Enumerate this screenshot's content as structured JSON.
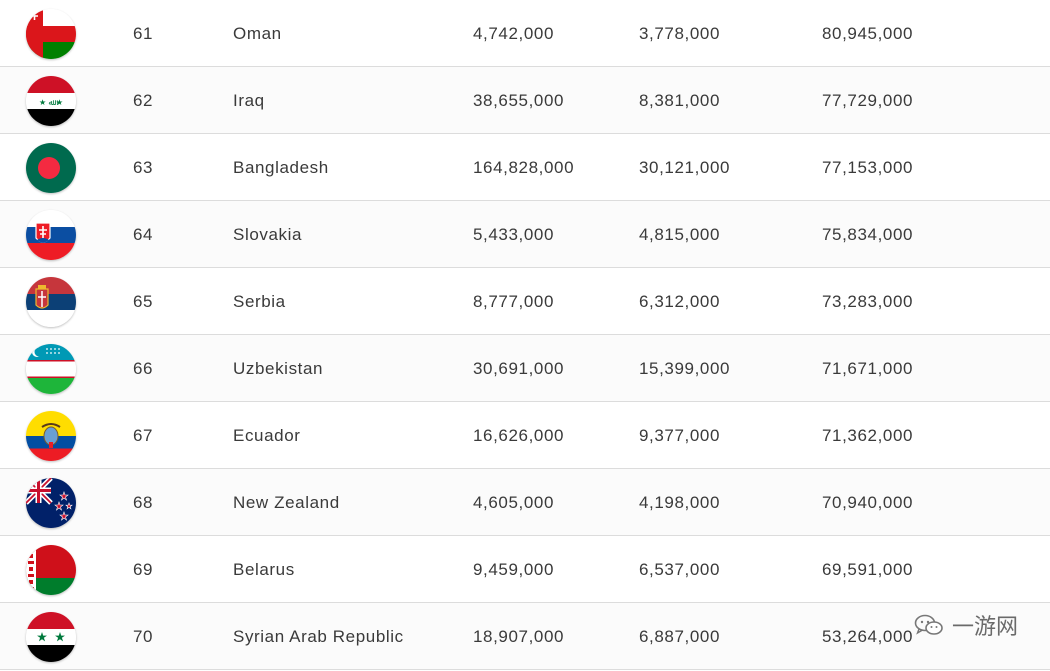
{
  "rows": [
    {
      "rank": "61",
      "country": "Oman",
      "value1": "4,742,000",
      "value2": "3,778,000",
      "value3": "80,945,000",
      "flag_icon": "oman-flag-icon"
    },
    {
      "rank": "62",
      "country": "Iraq",
      "value1": "38,655,000",
      "value2": "8,381,000",
      "value3": "77,729,000",
      "flag_icon": "iraq-flag-icon"
    },
    {
      "rank": "63",
      "country": "Bangladesh",
      "value1": "164,828,000",
      "value2": "30,121,000",
      "value3": "77,153,000",
      "flag_icon": "bangladesh-flag-icon"
    },
    {
      "rank": "64",
      "country": "Slovakia",
      "value1": "5,433,000",
      "value2": "4,815,000",
      "value3": "75,834,000",
      "flag_icon": "slovakia-flag-icon"
    },
    {
      "rank": "65",
      "country": "Serbia",
      "value1": "8,777,000",
      "value2": "6,312,000",
      "value3": "73,283,000",
      "flag_icon": "serbia-flag-icon"
    },
    {
      "rank": "66",
      "country": "Uzbekistan",
      "value1": "30,691,000",
      "value2": "15,399,000",
      "value3": "71,671,000",
      "flag_icon": "uzbekistan-flag-icon"
    },
    {
      "rank": "67",
      "country": "Ecuador",
      "value1": "16,626,000",
      "value2": "9,377,000",
      "value3": "71,362,000",
      "flag_icon": "ecuador-flag-icon"
    },
    {
      "rank": "68",
      "country": "New Zealand",
      "value1": "4,605,000",
      "value2": "4,198,000",
      "value3": "70,940,000",
      "flag_icon": "new-zealand-flag-icon"
    },
    {
      "rank": "69",
      "country": "Belarus",
      "value1": "9,459,000",
      "value2": "6,537,000",
      "value3": "69,591,000",
      "flag_icon": "belarus-flag-icon"
    },
    {
      "rank": "70",
      "country": "Syrian Arab Republic",
      "value1": "18,907,000",
      "value2": "6,887,000",
      "value3": "53,264,000",
      "flag_icon": "syria-flag-icon"
    }
  ],
  "watermark": {
    "text": "一游网",
    "icon": "wechat-icon"
  }
}
